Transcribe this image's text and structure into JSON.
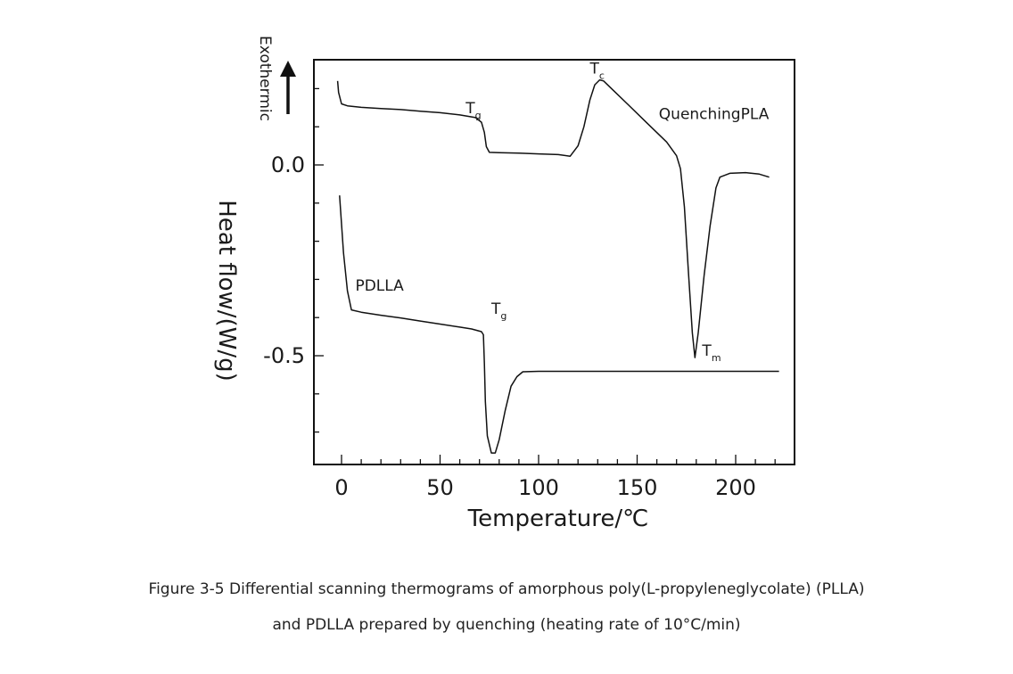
{
  "chart_data": {
    "type": "line",
    "xlabel": "Temperature/℃",
    "ylabel": "Heat flow/(W/g)",
    "exotherm_label": "Exothermic",
    "xlim": [
      -7,
      222
    ],
    "ylim": [
      -0.78,
      0.275
    ],
    "x_ticks": [
      0,
      50,
      100,
      150,
      200
    ],
    "y_ticks": [
      0.0,
      -0.5
    ],
    "y_tick_labels": [
      "0.0",
      "-0.5"
    ],
    "series": [
      {
        "name": "QuenchingPLA",
        "points": [
          [
            -2,
            0.22
          ],
          [
            -1.5,
            0.19
          ],
          [
            0,
            0.16
          ],
          [
            3,
            0.155
          ],
          [
            10,
            0.151
          ],
          [
            20,
            0.148
          ],
          [
            30,
            0.145
          ],
          [
            40,
            0.141
          ],
          [
            50,
            0.137
          ],
          [
            60,
            0.131
          ],
          [
            68,
            0.124
          ],
          [
            71,
            0.112
          ],
          [
            72.5,
            0.085
          ],
          [
            73.5,
            0.048
          ],
          [
            75,
            0.033
          ],
          [
            80,
            0.032
          ],
          [
            90,
            0.031
          ],
          [
            100,
            0.029
          ],
          [
            110,
            0.027
          ],
          [
            116,
            0.023
          ],
          [
            120,
            0.05
          ],
          [
            123,
            0.1
          ],
          [
            126,
            0.17
          ],
          [
            128.5,
            0.21
          ],
          [
            131,
            0.223
          ],
          [
            133,
            0.22
          ],
          [
            137,
            0.2
          ],
          [
            145,
            0.16
          ],
          [
            155,
            0.11
          ],
          [
            165,
            0.06
          ],
          [
            170,
            0.024
          ],
          [
            172,
            -0.01
          ],
          [
            174,
            -0.11
          ],
          [
            176,
            -0.28
          ],
          [
            178,
            -0.44
          ],
          [
            179.3,
            -0.505
          ],
          [
            181,
            -0.44
          ],
          [
            184,
            -0.29
          ],
          [
            187,
            -0.16
          ],
          [
            190,
            -0.06
          ],
          [
            192,
            -0.032
          ],
          [
            197,
            -0.022
          ],
          [
            205,
            -0.02
          ],
          [
            212,
            -0.024
          ],
          [
            217,
            -0.032
          ]
        ]
      },
      {
        "name": "PDLLA",
        "points": [
          [
            -1,
            -0.08
          ],
          [
            1,
            -0.23
          ],
          [
            3,
            -0.33
          ],
          [
            5,
            -0.38
          ],
          [
            10,
            -0.386
          ],
          [
            20,
            -0.394
          ],
          [
            30,
            -0.401
          ],
          [
            40,
            -0.409
          ],
          [
            50,
            -0.417
          ],
          [
            60,
            -0.425
          ],
          [
            66,
            -0.43
          ],
          [
            71,
            -0.437
          ],
          [
            72,
            -0.445
          ],
          [
            72.5,
            -0.52
          ],
          [
            73,
            -0.62
          ],
          [
            74,
            -0.71
          ],
          [
            76,
            -0.755
          ],
          [
            78,
            -0.755
          ],
          [
            80,
            -0.72
          ],
          [
            83,
            -0.645
          ],
          [
            86,
            -0.58
          ],
          [
            89,
            -0.555
          ],
          [
            92,
            -0.542
          ],
          [
            100,
            -0.541
          ],
          [
            130,
            -0.541
          ],
          [
            170,
            -0.541
          ],
          [
            200,
            -0.541
          ],
          [
            222,
            -0.541
          ]
        ]
      }
    ],
    "annotations": [
      {
        "base": "T",
        "sub": "g",
        "x": 63,
        "y": 0.135
      },
      {
        "base": "T",
        "sub": "c",
        "x": 126,
        "y": 0.24
      },
      {
        "base": "T",
        "sub": "g",
        "x": 76,
        "y": -0.39
      },
      {
        "base": "T",
        "sub": "m",
        "x": 183,
        "y": -0.5
      }
    ],
    "series_labels": [
      {
        "text": "QuenchingPLA",
        "x": 161,
        "y": 0.12
      },
      {
        "text": "PDLLA",
        "x": 7,
        "y": -0.33
      }
    ],
    "grid": false,
    "legend": "none"
  },
  "caption": {
    "line1": "Figure 3-5 Differential scanning thermograms of amorphous poly(L-propyleneglycolate) (PLLA)",
    "line2": "and PDLLA prepared by quenching (heating rate of 10°C/min)"
  }
}
